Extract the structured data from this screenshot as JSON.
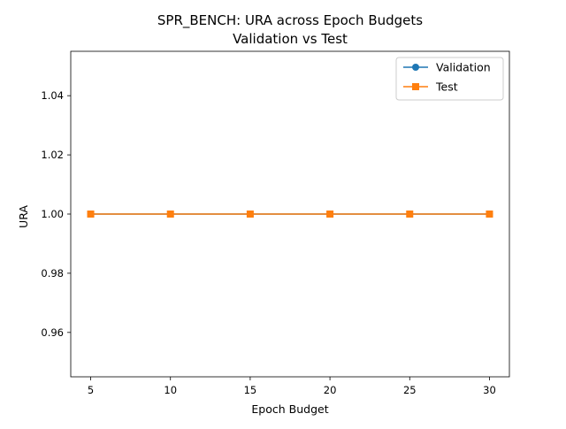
{
  "chart_data": {
    "type": "line",
    "title": "SPR_BENCH: URA across Epoch Budgets",
    "subtitle": "Validation vs Test",
    "xlabel": "Epoch Budget",
    "ylabel": "URA",
    "x": [
      5,
      10,
      15,
      20,
      25,
      30
    ],
    "xlim": [
      3.75,
      31.25
    ],
    "ylim": [
      0.945,
      1.055
    ],
    "xticks": [
      5,
      10,
      15,
      20,
      25,
      30
    ],
    "yticks": [
      0.96,
      0.98,
      1.0,
      1.02,
      1.04
    ],
    "ytick_labels": [
      "0.96",
      "0.98",
      "1.00",
      "1.02",
      "1.04"
    ],
    "grid": false,
    "legend": "top-right",
    "series": [
      {
        "name": "Validation",
        "values": [
          1.0,
          1.0,
          1.0,
          1.0,
          1.0,
          1.0
        ],
        "color": "#1f77b4",
        "marker": "circle"
      },
      {
        "name": "Test",
        "values": [
          1.0,
          1.0,
          1.0,
          1.0,
          1.0,
          1.0
        ],
        "color": "#ff7f0e",
        "marker": "square"
      }
    ]
  }
}
